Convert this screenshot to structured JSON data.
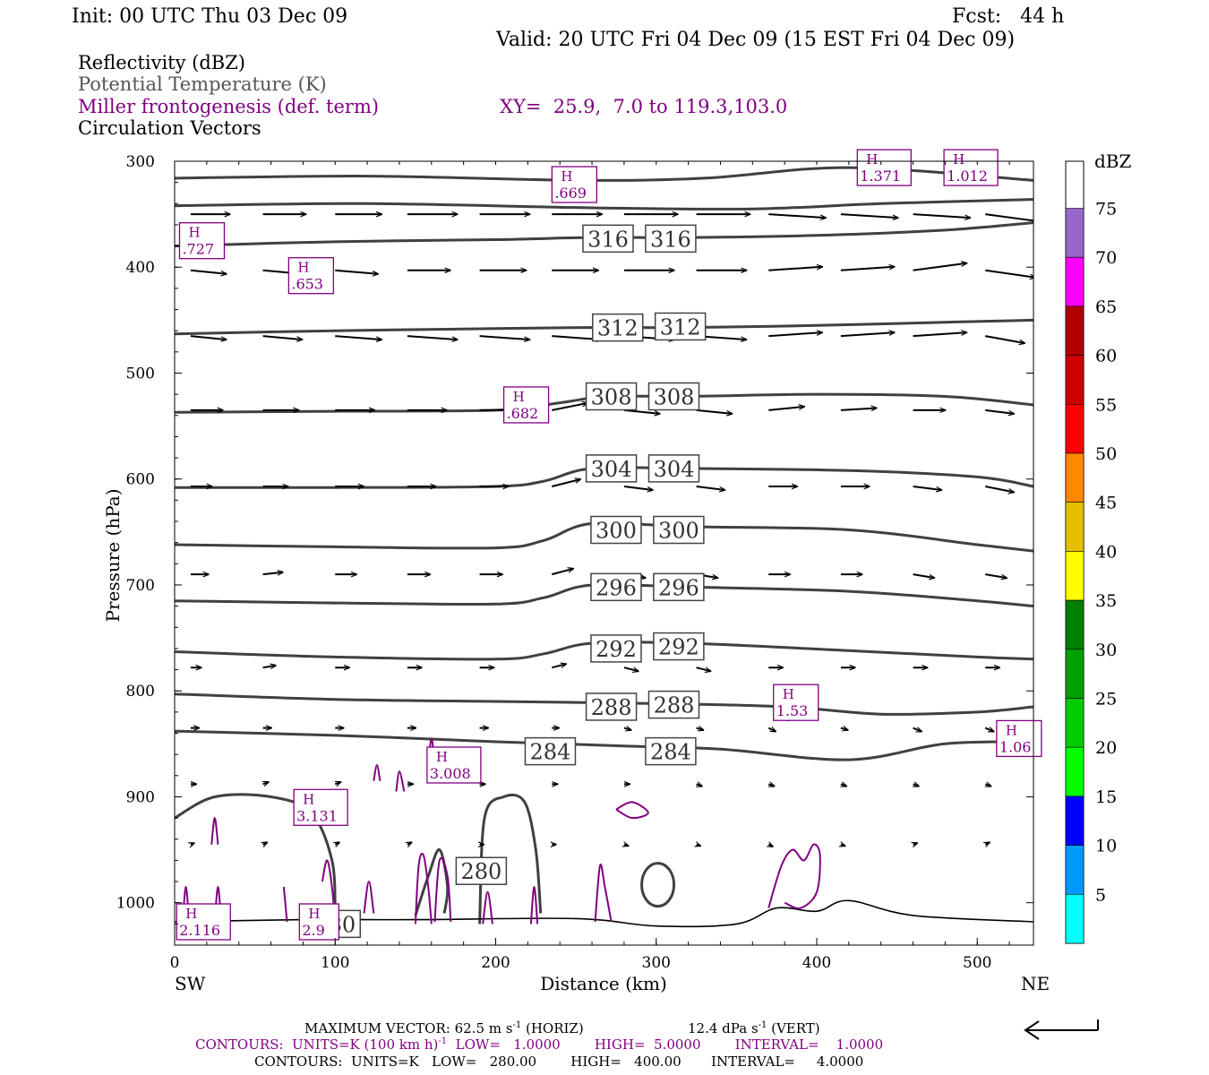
{
  "header": {
    "init": "Init: 00 UTC Thu 03 Dec 09",
    "fcst": "Fcst:   44 h",
    "valid": "Valid: 20 UTC Fri 04 Dec 09 (15 EST Fri 04 Dec 09)"
  },
  "fields": {
    "reflectivity": "Reflectivity (dBZ)",
    "theta": "Potential Temperature (K)",
    "miller": "Miller frontogenesis (def. term)",
    "xy": "XY=  25.9,  7.0 to 119.3,103.0",
    "vectors": "Circulation Vectors"
  },
  "colors": {
    "theta": "#404040",
    "miller": "#800080",
    "vectors": "#000000",
    "terrain": "#000000"
  },
  "chart_data": {
    "type": "contour",
    "xlabel": "Distance (km)",
    "ylabel": "Pressure (hPa)",
    "xlim": [
      0,
      535
    ],
    "ylim": [
      1040,
      300
    ],
    "y_scale": "linear (pressure, inverted)",
    "x_ticks": [
      "0",
      "100",
      "200",
      "300",
      "400",
      "500"
    ],
    "y_ticks": [
      "300",
      "400",
      "500",
      "600",
      "700",
      "800",
      "900",
      "1000"
    ],
    "endpoints": {
      "left": "SW",
      "right": "NE"
    },
    "theta_contours_K": [
      {
        "label": "316",
        "x": [
          0,
          100,
          200,
          260,
          320,
          400,
          480,
          535
        ],
        "p": [
          380,
          376,
          374,
          372,
          372,
          370,
          365,
          358
        ]
      },
      {
        "label": "312",
        "x": [
          0,
          100,
          200,
          260,
          320,
          400,
          480,
          535
        ],
        "p": [
          463,
          460,
          458,
          457,
          457,
          455,
          452,
          450
        ]
      },
      {
        "label": "308",
        "x": [
          0,
          100,
          200,
          240,
          270,
          320,
          400,
          480,
          535
        ],
        "p": [
          537,
          536,
          535,
          528,
          522,
          522,
          520,
          522,
          530
        ]
      },
      {
        "label": "304",
        "x": [
          0,
          100,
          200,
          230,
          260,
          320,
          420,
          500,
          535
        ],
        "p": [
          608,
          608,
          607,
          602,
          590,
          590,
          592,
          598,
          607
        ]
      },
      {
        "label": "300",
        "x": [
          0,
          100,
          200,
          230,
          260,
          320,
          420,
          500,
          535
        ],
        "p": [
          662,
          664,
          665,
          658,
          642,
          645,
          648,
          662,
          668
        ]
      },
      {
        "label": "296",
        "x": [
          0,
          100,
          200,
          230,
          260,
          320,
          420,
          500,
          535
        ],
        "p": [
          715,
          717,
          718,
          712,
          700,
          702,
          706,
          715,
          720
        ]
      },
      {
        "label": "292",
        "x": [
          0,
          100,
          200,
          230,
          260,
          320,
          420,
          500,
          535
        ],
        "p": [
          763,
          768,
          770,
          765,
          755,
          755,
          762,
          768,
          770
        ]
      },
      {
        "label": "288",
        "x": [
          0,
          100,
          200,
          300,
          380,
          440,
          500,
          535
        ],
        "p": [
          803,
          808,
          810,
          812,
          815,
          822,
          820,
          815
        ]
      },
      {
        "label": "284",
        "x": [
          0,
          100,
          200,
          280,
          340,
          420,
          480,
          535
        ],
        "p": [
          838,
          842,
          848,
          852,
          855,
          865,
          850,
          848
        ]
      },
      {
        "label": "280",
        "x": [
          0,
          50,
          90,
          100,
          130,
          190,
          210,
          230,
          290,
          310
        ],
        "p": [
          920,
          900,
          915,
          1000,
          null,
          1010,
          900,
          1010,
          1000,
          960
        ]
      }
    ],
    "theta_labels": [
      {
        "text": "316",
        "x": 270,
        "p": 373
      },
      {
        "text": "316",
        "x": 309,
        "p": 373
      },
      {
        "text": "312",
        "x": 276,
        "p": 457
      },
      {
        "text": "312",
        "x": 315,
        "p": 456
      },
      {
        "text": "308",
        "x": 272,
        "p": 522
      },
      {
        "text": "308",
        "x": 311,
        "p": 522
      },
      {
        "text": "304",
        "x": 272,
        "p": 590
      },
      {
        "text": "304",
        "x": 311,
        "p": 590
      },
      {
        "text": "300",
        "x": 275,
        "p": 648
      },
      {
        "text": "300",
        "x": 314,
        "p": 648
      },
      {
        "text": "296",
        "x": 275,
        "p": 702
      },
      {
        "text": "296",
        "x": 314,
        "p": 702
      },
      {
        "text": "292",
        "x": 275,
        "p": 760
      },
      {
        "text": "292",
        "x": 314,
        "p": 758
      },
      {
        "text": "288",
        "x": 272,
        "p": 815
      },
      {
        "text": "288",
        "x": 311,
        "p": 813
      },
      {
        "text": "284",
        "x": 234,
        "p": 857
      },
      {
        "text": "284",
        "x": 309,
        "p": 857
      },
      {
        "text": "280",
        "x": 191,
        "p": 970
      },
      {
        "text": "280",
        "x": 100,
        "p": 1020
      }
    ],
    "frontogenesis_maxima": [
      {
        "text": ".669",
        "x": 249,
        "p": 322
      },
      {
        "text": "1.371",
        "x": 442,
        "p": 306
      },
      {
        "text": "1.012",
        "x": 496,
        "p": 306
      },
      {
        "text": ".727",
        "x": 17,
        "p": 375
      },
      {
        "text": ".653",
        "x": 85,
        "p": 408
      },
      {
        "text": ".682",
        "x": 219,
        "p": 530
      },
      {
        "text": "1.53",
        "x": 387,
        "p": 811
      },
      {
        "text": "1.06",
        "x": 526,
        "p": 845
      },
      {
        "text": "3.008",
        "x": 174,
        "p": 870
      },
      {
        "text": "3.131",
        "x": 91,
        "p": 910
      },
      {
        "text": "2.116",
        "x": 18,
        "p": 1018
      },
      {
        "text": "2.9",
        "x": 90,
        "p": 1018
      }
    ],
    "vectors": [
      {
        "p": 350,
        "x": [
          10,
          55,
          100,
          145,
          190,
          235,
          280,
          325,
          370,
          415,
          460,
          505
        ],
        "u": [
          0.55,
          0.6,
          0.65,
          0.7,
          0.7,
          0.7,
          0.75,
          0.75,
          0.8,
          0.8,
          0.8,
          0.75
        ],
        "v": [
          0,
          0,
          0,
          0,
          0,
          0,
          0,
          0,
          0.05,
          0.05,
          0.05,
          0.1
        ]
      },
      {
        "p": 403,
        "x": [
          10,
          55,
          100,
          145,
          190,
          235,
          280,
          325,
          370,
          415,
          460,
          505
        ],
        "u": [
          0.5,
          0.55,
          0.6,
          0.6,
          0.65,
          0.65,
          0.7,
          0.7,
          0.75,
          0.75,
          0.75,
          0.7
        ],
        "v": [
          0.05,
          0.05,
          0.05,
          0,
          0,
          0,
          0,
          0,
          -0.05,
          -0.05,
          -0.1,
          0.1
        ]
      },
      {
        "p": 465,
        "x": [
          10,
          55,
          100,
          145,
          190,
          235,
          280,
          325,
          370,
          415,
          460,
          505
        ],
        "u": [
          0.5,
          0.55,
          0.65,
          0.7,
          0.7,
          0.7,
          0.7,
          0.7,
          0.75,
          0.75,
          0.75,
          0.55
        ],
        "v": [
          0.05,
          0.05,
          0.05,
          0.05,
          0.05,
          0.05,
          0.05,
          0.05,
          -0.05,
          -0.05,
          -0.05,
          0.1
        ]
      },
      {
        "p": 535,
        "x": [
          10,
          55,
          100,
          145,
          190,
          235,
          280,
          325,
          370,
          415,
          460,
          505
        ],
        "u": [
          0.45,
          0.5,
          0.55,
          0.55,
          0.55,
          0.5,
          0.5,
          0.5,
          0.5,
          0.5,
          0.45,
          0.4
        ],
        "v": [
          0,
          0,
          0,
          0,
          0,
          -0.1,
          0.05,
          0.05,
          -0.05,
          -0.03,
          0,
          0.05
        ]
      },
      {
        "p": 607,
        "x": [
          10,
          55,
          100,
          145,
          190,
          235,
          280,
          325,
          370,
          415,
          460,
          505
        ],
        "u": [
          0.3,
          0.35,
          0.4,
          0.4,
          0.4,
          0.4,
          0.4,
          0.4,
          0.4,
          0.4,
          0.4,
          0.4
        ],
        "v": [
          0,
          0,
          0,
          0,
          0,
          -0.1,
          0.05,
          0.05,
          0,
          0,
          0.05,
          0.08
        ]
      },
      {
        "p": 690,
        "x": [
          10,
          55,
          100,
          145,
          190,
          235,
          280,
          325,
          370,
          415,
          460,
          505
        ],
        "u": [
          0.25,
          0.28,
          0.3,
          0.32,
          0.32,
          0.3,
          0.3,
          0.3,
          0.3,
          0.3,
          0.3,
          0.3
        ],
        "v": [
          0,
          -0.03,
          0,
          0,
          0,
          -0.08,
          0.05,
          0.05,
          0,
          0,
          0.05,
          0.05
        ]
      },
      {
        "p": 778,
        "x": [
          10,
          55,
          100,
          145,
          190,
          235,
          280,
          325,
          370,
          415,
          460,
          505
        ],
        "u": [
          0.15,
          0.18,
          0.2,
          0.2,
          0.2,
          0.2,
          0.2,
          0.2,
          0.2,
          0.2,
          0.2,
          0.2
        ],
        "v": [
          0,
          -0.03,
          0,
          0,
          0,
          -0.05,
          0.05,
          0.05,
          0,
          0,
          0,
          0
        ]
      },
      {
        "p": 835,
        "x": [
          10,
          55,
          100,
          145,
          190,
          235,
          280,
          325,
          370,
          415,
          460,
          505
        ],
        "u": [
          0.12,
          0.12,
          0.12,
          0.12,
          0.12,
          0.1,
          0.1,
          0.1,
          0.1,
          0.1,
          0.12,
          0.12
        ],
        "v": [
          0,
          0,
          0,
          0,
          0,
          0,
          0.03,
          0.03,
          0.05,
          0.03,
          0.05,
          0.05
        ]
      },
      {
        "p": 888,
        "x": [
          10,
          55,
          100,
          145,
          190,
          235,
          280,
          325,
          370,
          415,
          460,
          505
        ],
        "u": [
          0.08,
          0.08,
          0.08,
          0.08,
          0.08,
          0.08,
          0.08,
          0.08,
          0.08,
          0.08,
          0.08,
          0.08
        ],
        "v": [
          0,
          -0.03,
          -0.03,
          0,
          0,
          0,
          0,
          0.03,
          0.03,
          0.03,
          0.03,
          0.03
        ]
      },
      {
        "p": 945,
        "x": [
          10,
          55,
          100,
          145,
          190,
          235,
          280,
          325,
          370,
          415,
          460,
          505
        ],
        "u": [
          0.05,
          0.06,
          0.06,
          0.06,
          0.06,
          0.06,
          0.06,
          0.06,
          0.06,
          0.06,
          0.06,
          0.06
        ],
        "v": [
          -0.02,
          -0.03,
          -0.03,
          -0.03,
          0,
          0,
          0.02,
          0.02,
          0.03,
          0.02,
          -0.02,
          -0.03
        ]
      }
    ],
    "colorbar": {
      "title": "dBZ",
      "labels": [
        "75",
        "70",
        "65",
        "60",
        "55",
        "50",
        "45",
        "40",
        "35",
        "30",
        "25",
        "20",
        "15",
        "10",
        "5"
      ],
      "colors": [
        "#9966cc",
        "#ff00ff",
        "#b00000",
        "#cc0000",
        "#ff0000",
        "#ff8800",
        "#e6c000",
        "#ffff00",
        "#008000",
        "#00a000",
        "#00cc00",
        "#00ff00",
        "#0000ff",
        "#0099ff",
        "#00ffff"
      ]
    }
  },
  "footer": {
    "max_vector": "MAXIMUM VECTOR:  62.5 m s",
    "max_vector_exp": "-1",
    "horiz": " (HORIZ)",
    "vert": "12.4 dPa s",
    "vert_exp": "-1",
    "vert_tail": " (VERT)",
    "contours1a": "CONTOURS:  UNITS=K (100 km h)",
    "contours1_exp": "-1",
    "contours1b": "  LOW=   1.0000        HIGH=  5.0000        INTERVAL=    1.0000",
    "contours2": "CONTOURS:  UNITS=K   LOW=   280.00        HIGH=   400.00       INTERVAL=     4.0000"
  }
}
